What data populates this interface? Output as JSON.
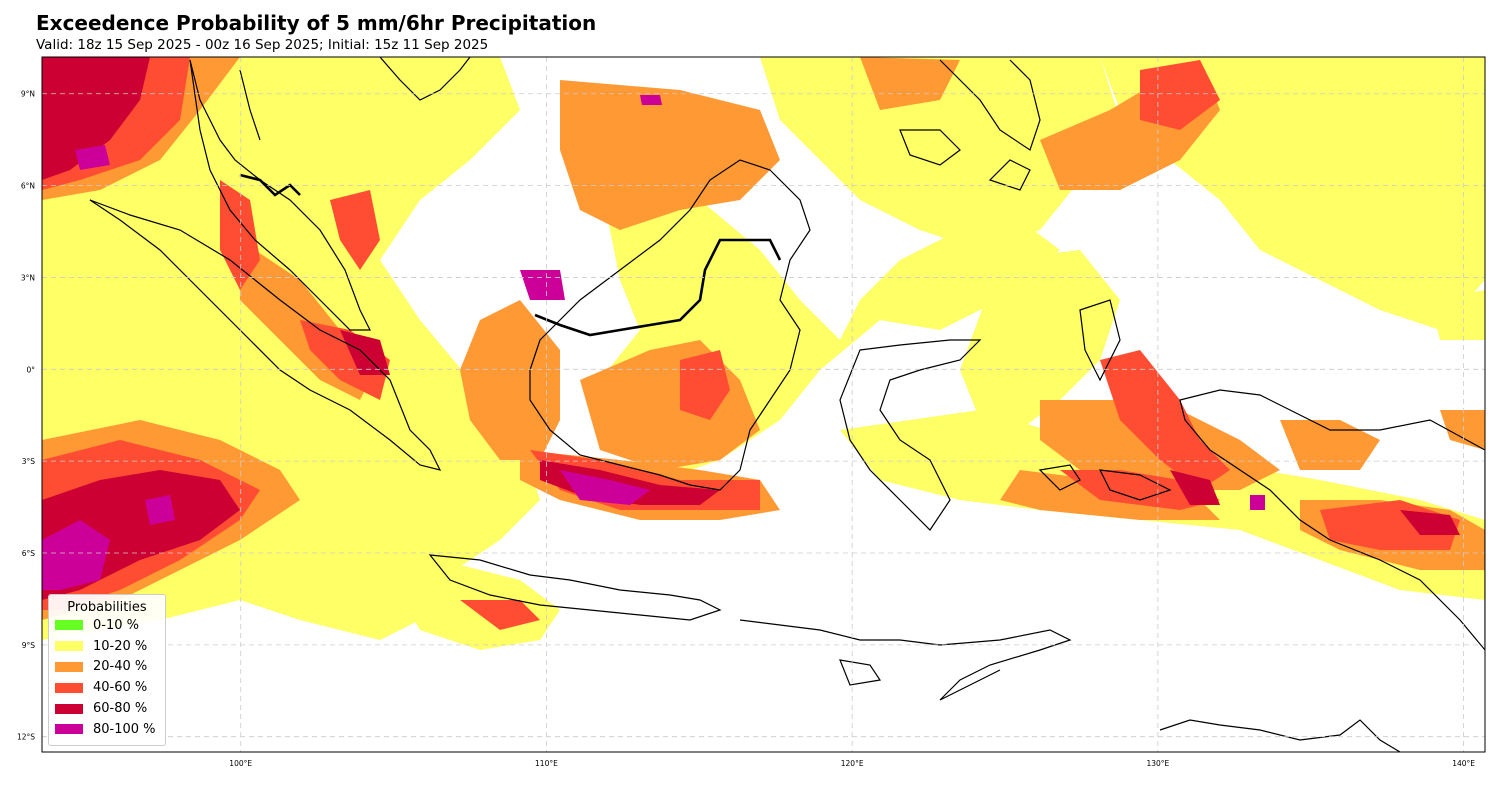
{
  "header": {
    "title": "Exceedence Probability of 5 mm/6hr Precipitation",
    "subtitle": "Valid: 18z 15 Sep 2025 - 00z 16 Sep 2025; Initial: 15z 11 Sep 2025"
  },
  "map": {
    "lon_range": [
      93.5,
      140.7
    ],
    "lat_range": [
      -12.5,
      10.2
    ],
    "x_ticks": [
      {
        "lon": 100,
        "label": "100°E"
      },
      {
        "lon": 110,
        "label": "110°E"
      },
      {
        "lon": 120,
        "label": "120°E"
      },
      {
        "lon": 130,
        "label": "130°E"
      },
      {
        "lon": 140,
        "label": "140°E"
      }
    ],
    "y_ticks": [
      {
        "lat": 9,
        "label": "9°N"
      },
      {
        "lat": 6,
        "label": "6°N"
      },
      {
        "lat": 3,
        "label": "3°N"
      },
      {
        "lat": 0,
        "label": "0°"
      },
      {
        "lat": -3,
        "label": "3°S"
      },
      {
        "lat": -6,
        "label": "6°S"
      },
      {
        "lat": -9,
        "label": "9°S"
      },
      {
        "lat": -12,
        "label": "12°S"
      }
    ],
    "grid": true,
    "gridline_color": "#cccccc",
    "land_stroke": "#000000"
  },
  "legend": {
    "title": "Probabilities",
    "placement": "bottom-left",
    "items": [
      {
        "label": "0-10 %",
        "color": "#66ff22"
      },
      {
        "label": "10-20 %",
        "color": "#ffff66"
      },
      {
        "label": "20-40 %",
        "color": "#ff9933"
      },
      {
        "label": "40-60 %",
        "color": "#ff4d33"
      },
      {
        "label": "60-80 %",
        "color": "#cc0033"
      },
      {
        "label": "80-100 %",
        "color": "#cc0099"
      }
    ]
  }
}
